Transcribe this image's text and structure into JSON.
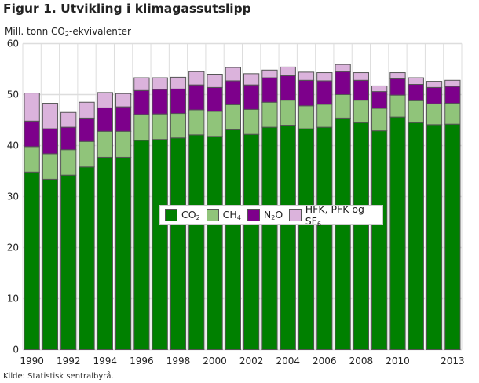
{
  "title": "Figur 1.  Utvikling i klimagassutslipp",
  "ylabel": {
    "main": "Mill. tonn CO",
    "sub": "2",
    "tail": "-ekvivalenter"
  },
  "source": "Kilde: Statistisk sentralbyrå.",
  "chart_data": {
    "type": "bar",
    "stacked": true,
    "categories": [
      "1990",
      "1991",
      "1992",
      "1993",
      "1994",
      "1995",
      "1996",
      "1997",
      "1998",
      "1999",
      "2000",
      "2001",
      "2002",
      "2003",
      "2004",
      "2005",
      "2006",
      "2007",
      "2008",
      "2009",
      "2010",
      "2011",
      "2012",
      "2013"
    ],
    "x_tick_labels": [
      "1990",
      "1992",
      "1994",
      "1996",
      "1998",
      "2000",
      "2002",
      "2004",
      "2006",
      "2008",
      "2010",
      "2013"
    ],
    "y_ticks": [
      0,
      10,
      20,
      30,
      40,
      50,
      60
    ],
    "ylim": [
      0,
      60
    ],
    "grid": true,
    "legend_position": "center",
    "series": [
      {
        "name": "CO2",
        "label": {
          "main": "CO",
          "sub": "2"
        },
        "color": "#008000",
        "values": [
          34.8,
          33.4,
          34.2,
          35.8,
          37.7,
          37.7,
          41.0,
          41.2,
          41.5,
          42.1,
          41.8,
          43.1,
          42.2,
          43.6,
          44.0,
          43.3,
          43.6,
          45.4,
          44.5,
          42.9,
          45.6,
          44.5,
          44.1,
          44.2
        ]
      },
      {
        "name": "CH4",
        "label": {
          "main": "CH",
          "sub": "4"
        },
        "color": "#90c47a",
        "values": [
          5.0,
          5.0,
          5.0,
          5.0,
          5.1,
          5.1,
          5.1,
          5.0,
          4.8,
          4.9,
          4.9,
          4.9,
          4.9,
          4.9,
          4.9,
          4.5,
          4.5,
          4.6,
          4.4,
          4.4,
          4.3,
          4.3,
          4.1,
          4.1
        ]
      },
      {
        "name": "N2O",
        "label": {
          "main": "N",
          "sub": "2",
          "tail": "O"
        },
        "color": "#7d008b",
        "values": [
          5.0,
          4.9,
          4.4,
          4.6,
          4.6,
          4.8,
          4.7,
          4.8,
          4.8,
          4.9,
          4.7,
          4.7,
          4.8,
          4.8,
          4.8,
          5.0,
          4.6,
          4.5,
          3.9,
          3.3,
          3.2,
          3.2,
          3.2,
          3.3
        ]
      },
      {
        "name": "HFK, PFK og SF6",
        "label": {
          "main": "HFK, PFK og SF",
          "sub": "6"
        },
        "color": "#dbb3dc",
        "values": [
          5.5,
          5.0,
          2.9,
          3.1,
          3.0,
          2.6,
          2.5,
          2.3,
          2.3,
          2.6,
          2.6,
          2.6,
          2.2,
          1.5,
          1.7,
          1.6,
          1.6,
          1.4,
          1.5,
          1.1,
          1.2,
          1.3,
          1.2,
          1.2
        ]
      }
    ]
  }
}
